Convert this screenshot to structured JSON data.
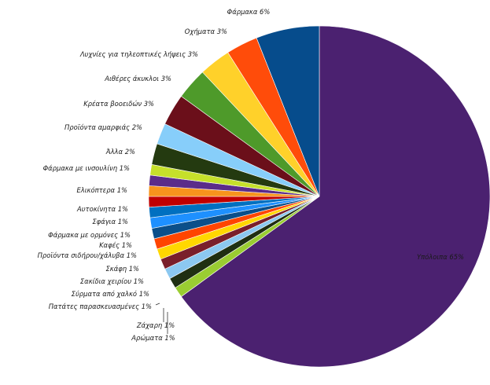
{
  "chart_data": {
    "type": "pie",
    "title": "",
    "slices": [
      {
        "label": "Υπόλοιπα 65%",
        "value": 65,
        "color": "#4B2170"
      },
      {
        "label": "Αρώματα 1%",
        "value": 1,
        "color": "#9ACD32"
      },
      {
        "label": "Ζάχαρη 1%",
        "value": 1,
        "color": "#1F2F12"
      },
      {
        "label": "Πατάτες παρασκευασμένες 1%",
        "value": 1,
        "color": "#8CC8F0"
      },
      {
        "label": "Σύρματα από χαλκό 1%",
        "value": 1,
        "color": "#7A1F2B"
      },
      {
        "label": "Σακίδια χειρίου 1%",
        "value": 1,
        "color": "#FFD700"
      },
      {
        "label": "Σκάφη 1%",
        "value": 1,
        "color": "#FF4500"
      },
      {
        "label": "Προϊόντα σιδήρου/χάλυβα 1%",
        "value": 1,
        "color": "#0B4F8A"
      },
      {
        "label": "Καφές 1%",
        "value": 1,
        "color": "#1E90FF"
      },
      {
        "label": "Φάρμακα με ορμόνες 1%",
        "value": 1,
        "color": "#0070C0"
      },
      {
        "label": "Σφάγια 1%",
        "value": 1,
        "color": "#C00000"
      },
      {
        "label": "Αυτοκίνητα 1%",
        "value": 1,
        "color": "#F7941D"
      },
      {
        "label": "Ελικόπτερα 1%",
        "value": 1,
        "color": "#5B2C8A"
      },
      {
        "label": "Φάρμακα με ινσουλίνη 1%",
        "value": 1,
        "color": "#C6E02B"
      },
      {
        "label": "Άλλα 2%",
        "value": 2,
        "color": "#243A10"
      },
      {
        "label": "Προϊόντα αμαρφιάς 2%",
        "value": 2,
        "color": "#87CEFA"
      },
      {
        "label": "Κρέατα βοοειδών 3%",
        "value": 3,
        "color": "#6B0F1A"
      },
      {
        "label": "Αιθέρες άκυκλοι 3%",
        "value": 3,
        "color": "#4E9A2A"
      },
      {
        "label": "Λυχνίες για τηλεοπτικές λήψεις 3%",
        "value": 3,
        "color": "#FFD12A"
      },
      {
        "label": "Οχήματα 3%",
        "value": 3,
        "color": "#FF4C0A"
      },
      {
        "label": "Φάρμακα 6%",
        "value": 6,
        "color": "#064C8C"
      }
    ]
  }
}
